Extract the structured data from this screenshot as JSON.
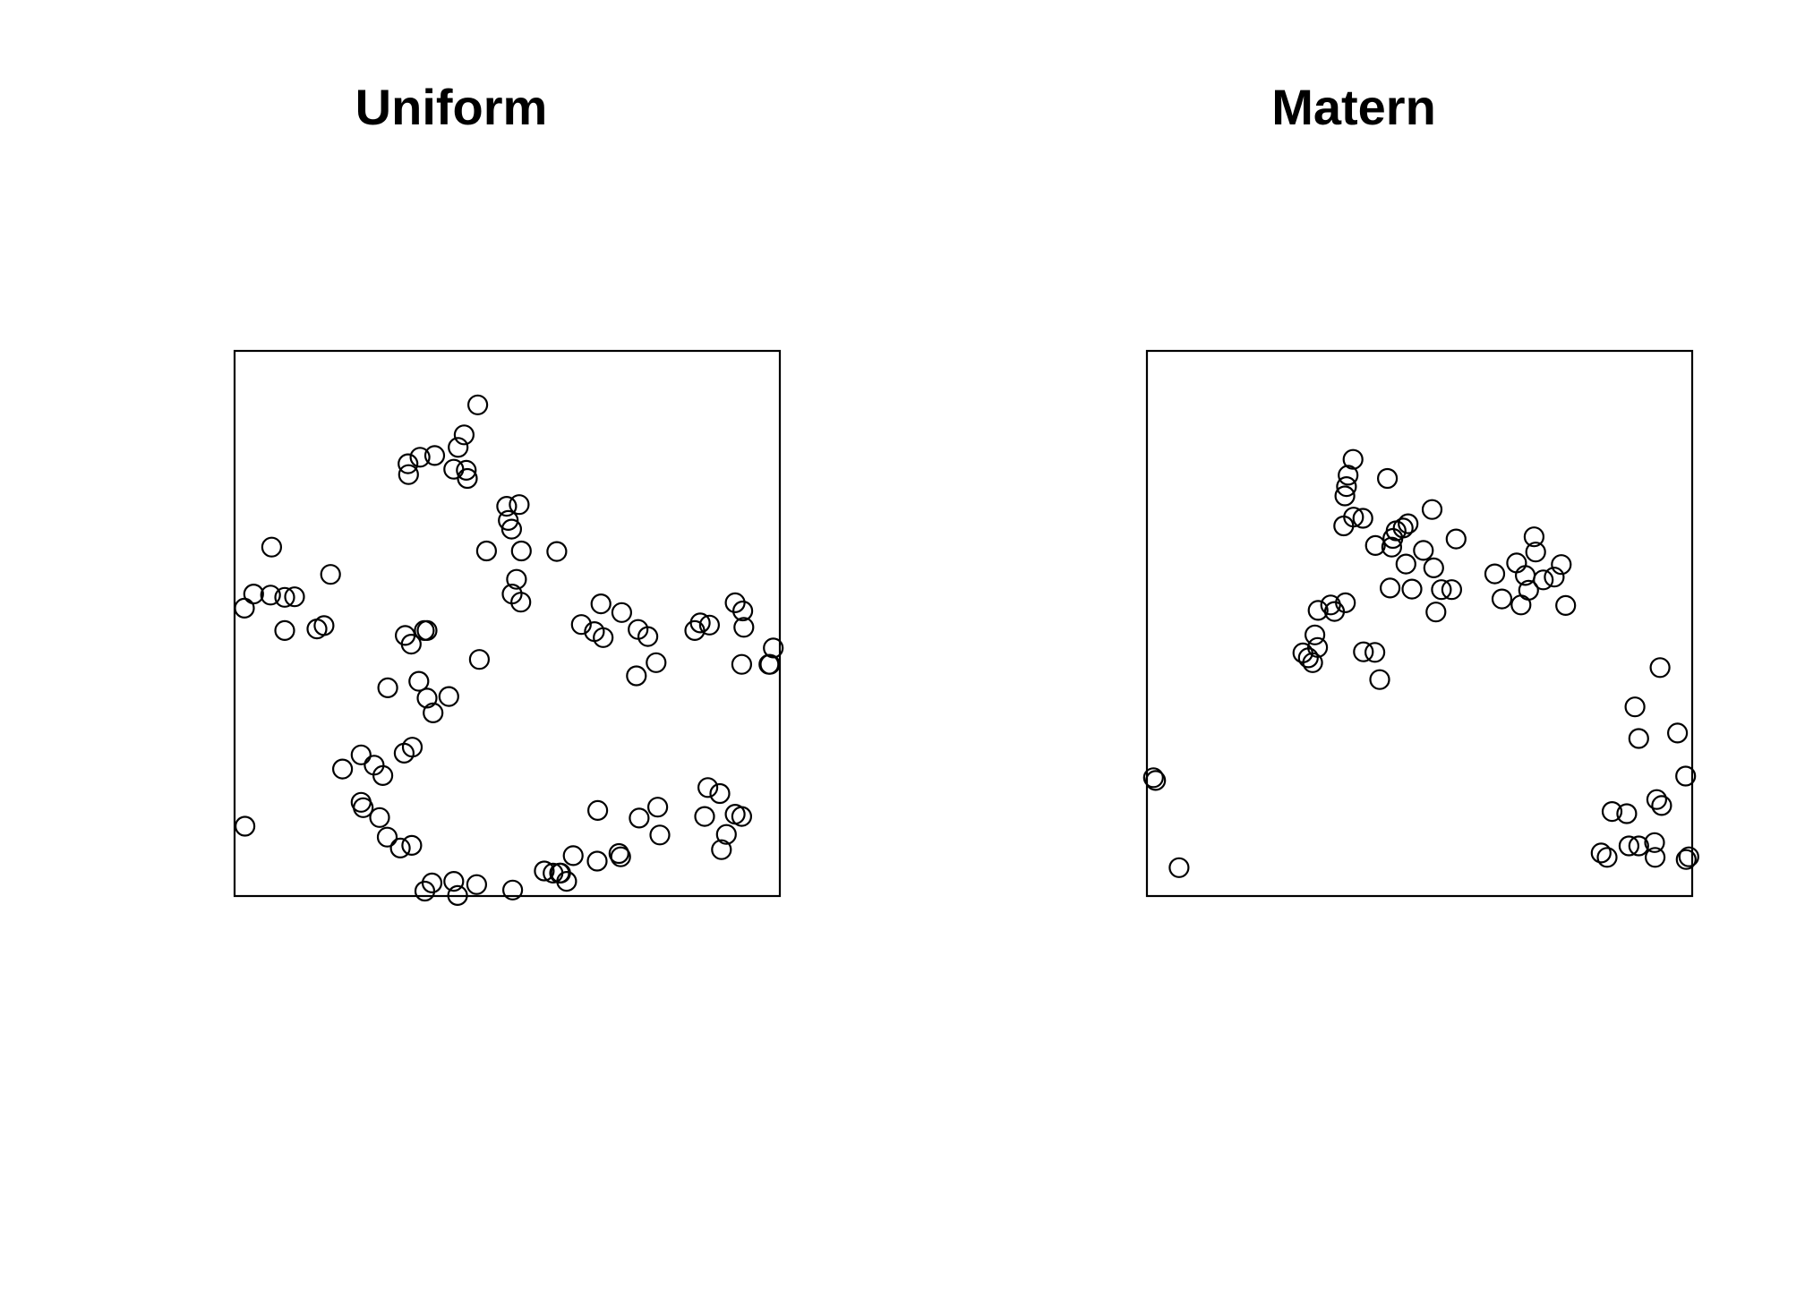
{
  "chart_data": [
    {
      "type": "scatter",
      "title": "Uniform",
      "xlim": [
        0,
        1
      ],
      "ylim": [
        0,
        1
      ],
      "grid": false,
      "axes_shown": false,
      "marker": "open-circle",
      "marker_color": "#000000",
      "points": [
        [
          0.446,
          0.901
        ],
        [
          0.421,
          0.846
        ],
        [
          0.41,
          0.823
        ],
        [
          0.318,
          0.793
        ],
        [
          0.34,
          0.805
        ],
        [
          0.319,
          0.773
        ],
        [
          0.367,
          0.808
        ],
        [
          0.402,
          0.783
        ],
        [
          0.425,
          0.781
        ],
        [
          0.427,
          0.766
        ],
        [
          0.499,
          0.715
        ],
        [
          0.522,
          0.718
        ],
        [
          0.502,
          0.689
        ],
        [
          0.508,
          0.673
        ],
        [
          0.462,
          0.633
        ],
        [
          0.526,
          0.633
        ],
        [
          0.591,
          0.632
        ],
        [
          0.068,
          0.64
        ],
        [
          0.176,
          0.59
        ],
        [
          0.517,
          0.581
        ],
        [
          0.509,
          0.554
        ],
        [
          0.525,
          0.539
        ],
        [
          0.035,
          0.554
        ],
        [
          0.066,
          0.552
        ],
        [
          0.092,
          0.548
        ],
        [
          0.11,
          0.549
        ],
        [
          0.018,
          0.528
        ],
        [
          0.092,
          0.487
        ],
        [
          0.164,
          0.496
        ],
        [
          0.151,
          0.49
        ],
        [
          0.672,
          0.536
        ],
        [
          0.71,
          0.52
        ],
        [
          0.854,
          0.501
        ],
        [
          0.871,
          0.497
        ],
        [
          0.918,
          0.538
        ],
        [
          0.932,
          0.523
        ],
        [
          0.934,
          0.493
        ],
        [
          0.636,
          0.498
        ],
        [
          0.66,
          0.485
        ],
        [
          0.676,
          0.474
        ],
        [
          0.74,
          0.489
        ],
        [
          0.758,
          0.476
        ],
        [
          0.844,
          0.487
        ],
        [
          0.313,
          0.478
        ],
        [
          0.324,
          0.462
        ],
        [
          0.348,
          0.487
        ],
        [
          0.353,
          0.487
        ],
        [
          0.449,
          0.434
        ],
        [
          0.737,
          0.404
        ],
        [
          0.773,
          0.428
        ],
        [
          0.93,
          0.425
        ],
        [
          0.982,
          0.425
        ],
        [
          0.98,
          0.425
        ],
        [
          0.988,
          0.455
        ],
        [
          0.338,
          0.394
        ],
        [
          0.281,
          0.382
        ],
        [
          0.353,
          0.363
        ],
        [
          0.393,
          0.366
        ],
        [
          0.364,
          0.336
        ],
        [
          0.326,
          0.273
        ],
        [
          0.311,
          0.262
        ],
        [
          0.232,
          0.259
        ],
        [
          0.256,
          0.24
        ],
        [
          0.198,
          0.233
        ],
        [
          0.272,
          0.221
        ],
        [
          0.019,
          0.128
        ],
        [
          0.232,
          0.172
        ],
        [
          0.236,
          0.162
        ],
        [
          0.266,
          0.144
        ],
        [
          0.28,
          0.108
        ],
        [
          0.325,
          0.093
        ],
        [
          0.304,
          0.088
        ],
        [
          0.666,
          0.157
        ],
        [
          0.776,
          0.163
        ],
        [
          0.742,
          0.143
        ],
        [
          0.868,
          0.199
        ],
        [
          0.89,
          0.188
        ],
        [
          0.862,
          0.146
        ],
        [
          0.918,
          0.15
        ],
        [
          0.93,
          0.146
        ],
        [
          0.902,
          0.113
        ],
        [
          0.893,
          0.085
        ],
        [
          0.78,
          0.112
        ],
        [
          0.705,
          0.078
        ],
        [
          0.708,
          0.072
        ],
        [
          0.665,
          0.064
        ],
        [
          0.621,
          0.074
        ],
        [
          0.568,
          0.046
        ],
        [
          0.584,
          0.042
        ],
        [
          0.596,
          0.042
        ],
        [
          0.598,
          0.042
        ],
        [
          0.609,
          0.027
        ],
        [
          0.362,
          0.024
        ],
        [
          0.402,
          0.027
        ],
        [
          0.444,
          0.021
        ],
        [
          0.349,
          0.009
        ],
        [
          0.51,
          0.011
        ],
        [
          0.409,
          0.001
        ]
      ]
    },
    {
      "type": "scatter",
      "title": "Matern",
      "xlim": [
        0,
        1
      ],
      "ylim": [
        0,
        1
      ],
      "grid": false,
      "axes_shown": false,
      "marker": "open-circle",
      "marker_color": "#000000",
      "points": [
        [
          0.378,
          0.801
        ],
        [
          0.369,
          0.772
        ],
        [
          0.441,
          0.766
        ],
        [
          0.366,
          0.751
        ],
        [
          0.363,
          0.734
        ],
        [
          0.523,
          0.709
        ],
        [
          0.379,
          0.695
        ],
        [
          0.396,
          0.693
        ],
        [
          0.361,
          0.679
        ],
        [
          0.479,
          0.683
        ],
        [
          0.47,
          0.675
        ],
        [
          0.457,
          0.67
        ],
        [
          0.451,
          0.656
        ],
        [
          0.567,
          0.655
        ],
        [
          0.419,
          0.643
        ],
        [
          0.449,
          0.64
        ],
        [
          0.507,
          0.634
        ],
        [
          0.475,
          0.609
        ],
        [
          0.526,
          0.602
        ],
        [
          0.71,
          0.659
        ],
        [
          0.713,
          0.631
        ],
        [
          0.678,
          0.611
        ],
        [
          0.76,
          0.608
        ],
        [
          0.638,
          0.591
        ],
        [
          0.694,
          0.588
        ],
        [
          0.747,
          0.585
        ],
        [
          0.727,
          0.58
        ],
        [
          0.446,
          0.565
        ],
        [
          0.486,
          0.563
        ],
        [
          0.54,
          0.562
        ],
        [
          0.559,
          0.562
        ],
        [
          0.7,
          0.561
        ],
        [
          0.651,
          0.545
        ],
        [
          0.686,
          0.534
        ],
        [
          0.768,
          0.533
        ],
        [
          0.364,
          0.538
        ],
        [
          0.337,
          0.534
        ],
        [
          0.314,
          0.524
        ],
        [
          0.344,
          0.522
        ],
        [
          0.53,
          0.521
        ],
        [
          0.308,
          0.479
        ],
        [
          0.313,
          0.456
        ],
        [
          0.286,
          0.446
        ],
        [
          0.296,
          0.437
        ],
        [
          0.304,
          0.428
        ],
        [
          0.397,
          0.448
        ],
        [
          0.418,
          0.447
        ],
        [
          0.427,
          0.397
        ],
        [
          0.941,
          0.419
        ],
        [
          0.895,
          0.347
        ],
        [
          0.902,
          0.289
        ],
        [
          0.973,
          0.299
        ],
        [
          0.988,
          0.22
        ],
        [
          0.012,
          0.217
        ],
        [
          0.016,
          0.212
        ],
        [
          0.059,
          0.052
        ],
        [
          0.935,
          0.177
        ],
        [
          0.944,
          0.166
        ],
        [
          0.853,
          0.155
        ],
        [
          0.88,
          0.151
        ],
        [
          0.884,
          0.092
        ],
        [
          0.902,
          0.092
        ],
        [
          0.931,
          0.098
        ],
        [
          0.932,
          0.071
        ],
        [
          0.833,
          0.079
        ],
        [
          0.844,
          0.071
        ],
        [
          0.989,
          0.067
        ],
        [
          0.994,
          0.072
        ]
      ]
    }
  ]
}
